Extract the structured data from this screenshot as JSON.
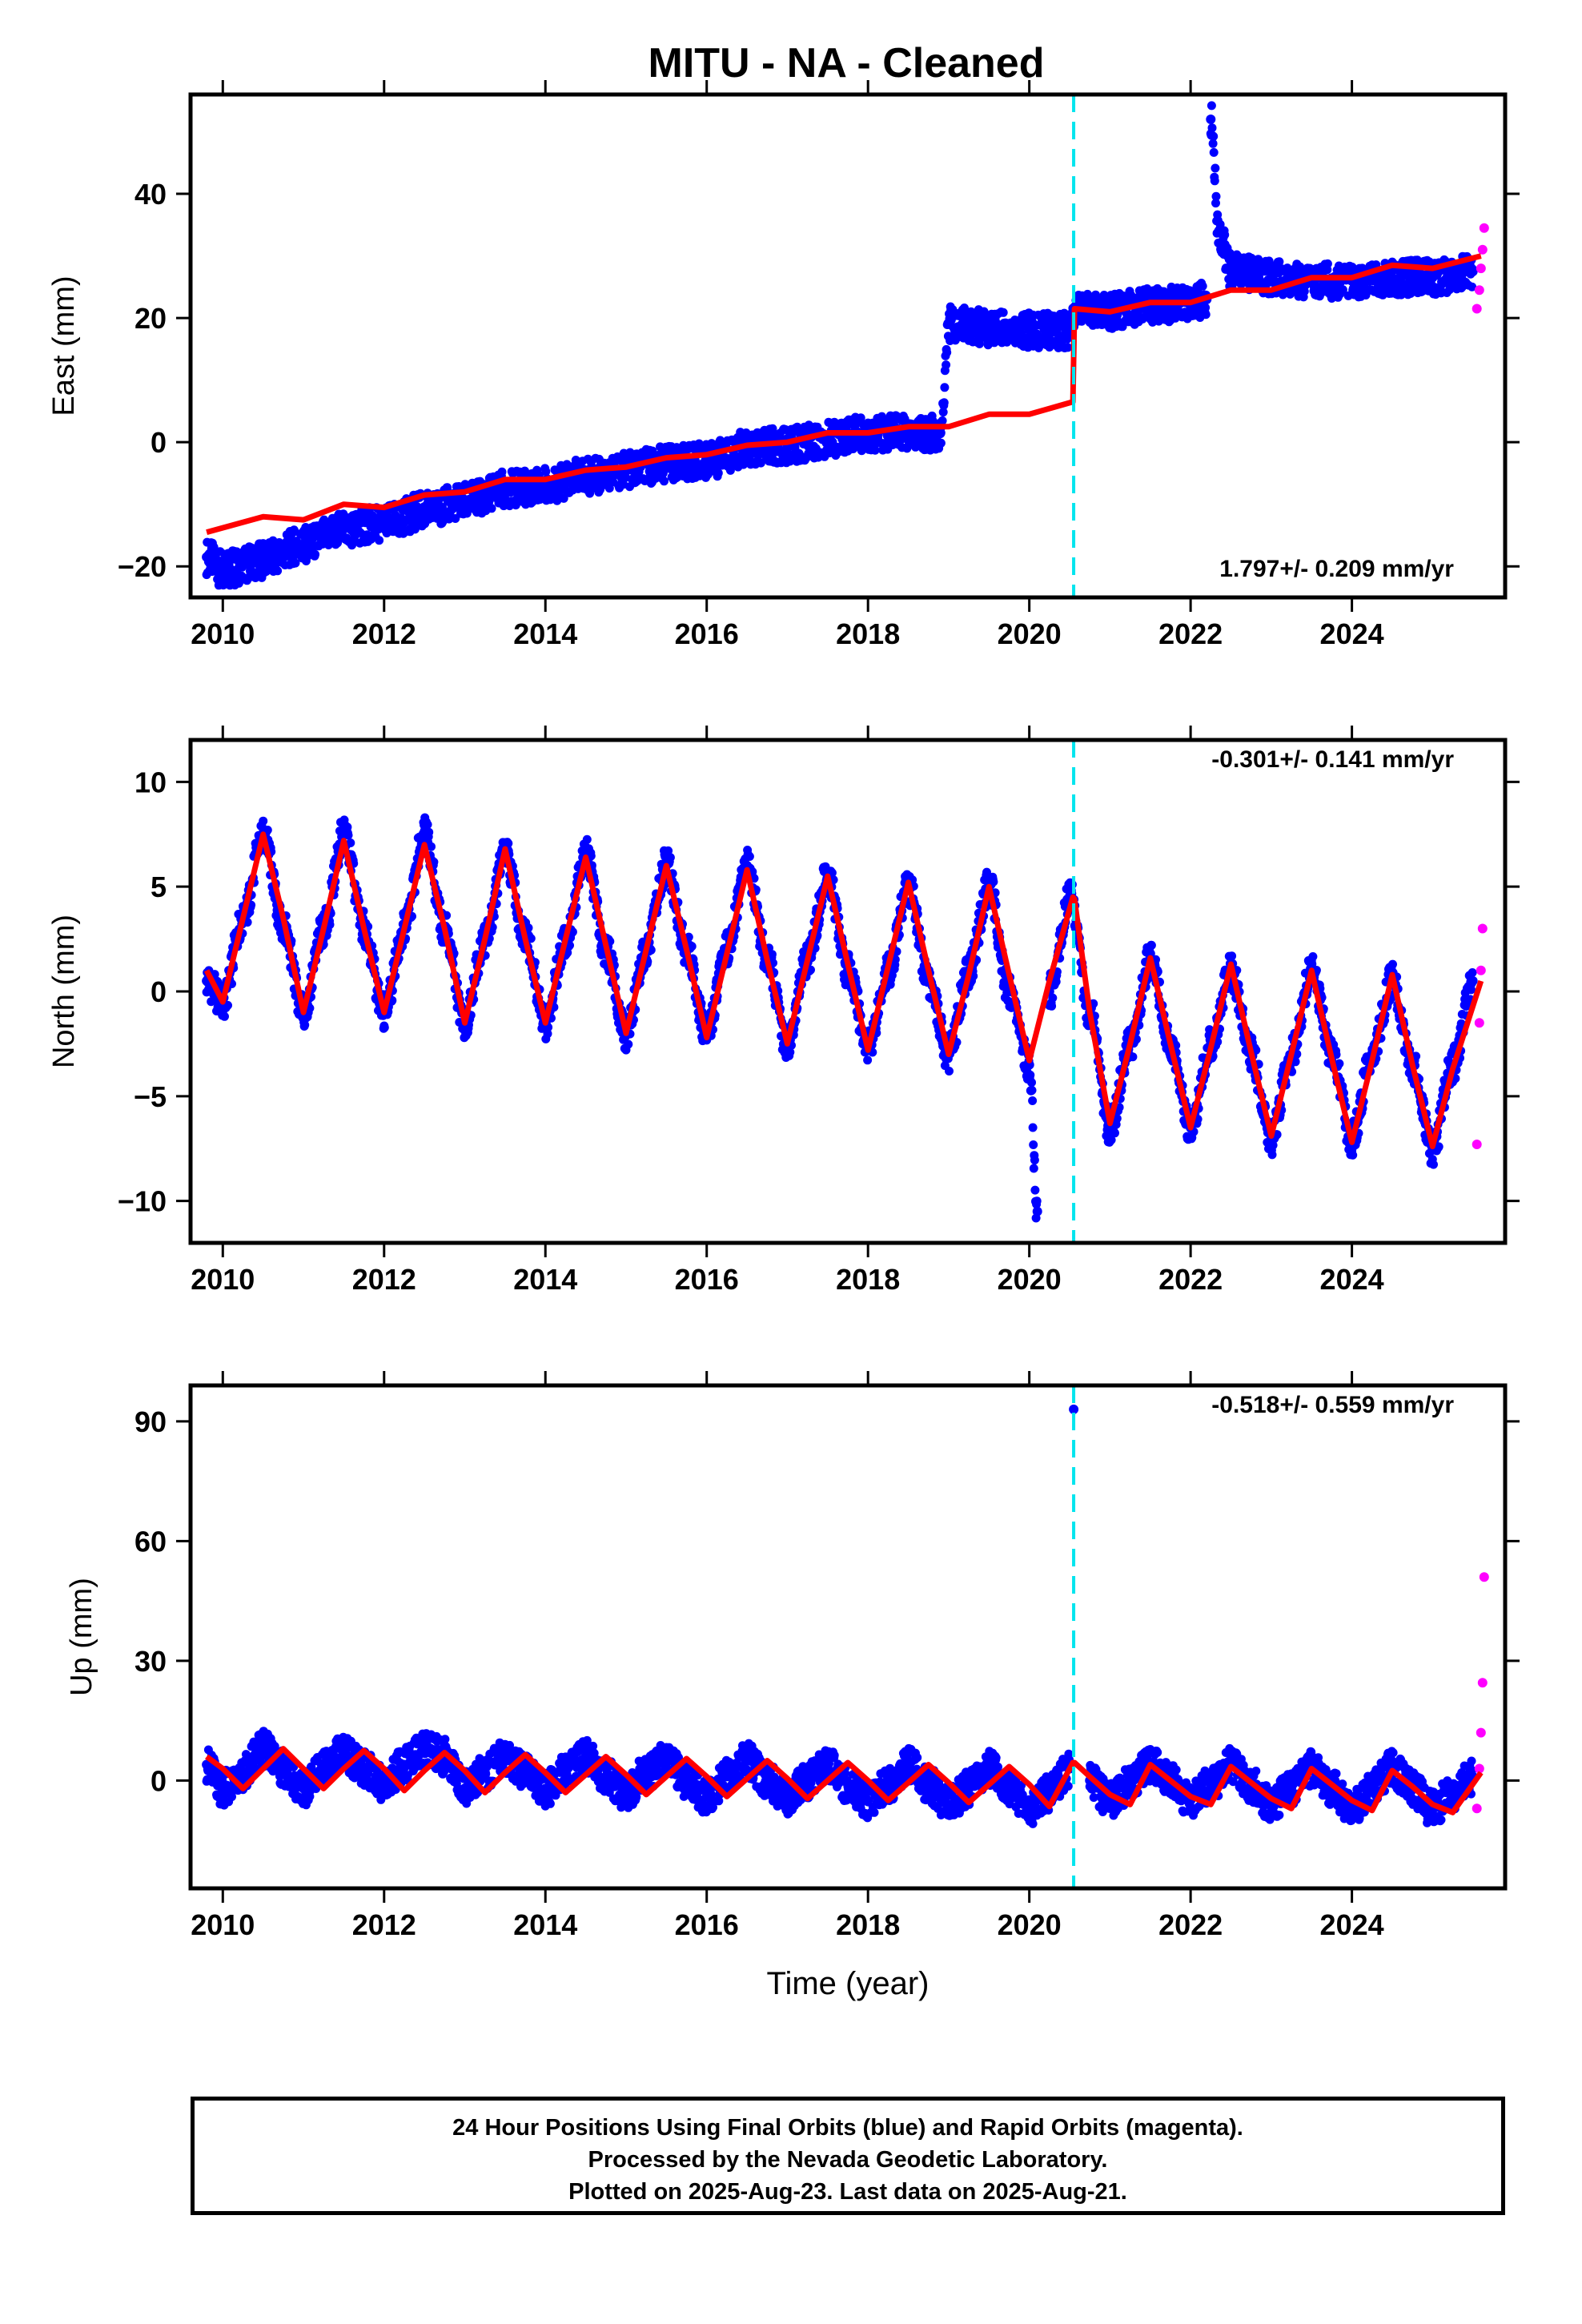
{
  "title": "MITU  - NA - Cleaned",
  "xlabel": "Time (year)",
  "footer": {
    "line1": "24 Hour Positions Using Final Orbits (blue) and Rapid Orbits (magenta).",
    "line2": "Processed by the Nevada Geodetic Laboratory.",
    "line3": "Plotted on 2025-Aug-23. Last data on 2025-Aug-21."
  },
  "colors": {
    "final_orbits": "#0000ff",
    "rapid_orbits": "#ff00ff",
    "model": "#ff0000",
    "equipment_change": "#00e5ee"
  },
  "chart_data": [
    {
      "type": "scatter",
      "component": "east",
      "ylabel": "East (mm)",
      "rate_text": "1.797+/- 0.209 mm/yr",
      "xlim": [
        2009.6,
        2025.9
      ],
      "ylim": [
        -25,
        56
      ],
      "xticks": [
        2010,
        2012,
        2014,
        2016,
        2018,
        2020,
        2022,
        2024
      ],
      "yticks": [
        -20,
        0,
        20,
        40
      ],
      "vline": 2020.55,
      "series": [
        {
          "name": "Final Orbits",
          "color": "#0000ff",
          "x": [
            2009.8,
            2010.0,
            2010.5,
            2011.0,
            2011.5,
            2012.0,
            2012.5,
            2013.0,
            2013.5,
            2014.0,
            2014.5,
            2015.0,
            2015.5,
            2016.0,
            2016.5,
            2017.0,
            2017.5,
            2018.0,
            2018.5,
            2018.9,
            2019.0,
            2019.5,
            2020.0,
            2020.5,
            2020.6,
            2021.0,
            2021.5,
            2022.0,
            2022.2,
            2022.25,
            2022.35,
            2022.5,
            2023.0,
            2023.5,
            2024.0,
            2024.5,
            2025.0,
            2025.5
          ],
          "y": [
            -18.5,
            -20.5,
            -19.0,
            -16.5,
            -14.0,
            -13.0,
            -11.0,
            -9.5,
            -7.5,
            -7.0,
            -5.5,
            -4.5,
            -3.5,
            -3.0,
            -1.0,
            -0.5,
            0.5,
            1.5,
            1.5,
            1.5,
            19.0,
            18.5,
            18.0,
            18.0,
            21.5,
            21.0,
            22.0,
            22.5,
            23.0,
            52.0,
            34.0,
            27.5,
            26.5,
            26.0,
            26.0,
            26.5,
            26.5,
            27.5
          ]
        },
        {
          "name": "Rapid Orbits",
          "color": "#ff00ff",
          "x": [
            2025.55,
            2025.58,
            2025.6,
            2025.62,
            2025.64
          ],
          "y": [
            21.5,
            24.5,
            28.0,
            31.0,
            34.5
          ]
        },
        {
          "name": "Model",
          "color": "#ff0000",
          "x": [
            2009.8,
            2010.5,
            2011.0,
            2011.5,
            2012.0,
            2012.5,
            2013.0,
            2013.5,
            2014.0,
            2014.5,
            2015.0,
            2015.5,
            2016.0,
            2016.5,
            2017.0,
            2017.5,
            2018.0,
            2018.5,
            2019.0,
            2019.5,
            2020.0,
            2020.54,
            2020.56,
            2021.0,
            2021.5,
            2022.0,
            2022.5,
            2023.0,
            2023.5,
            2024.0,
            2024.5,
            2025.0,
            2025.6
          ],
          "y": [
            -14.5,
            -12.0,
            -12.5,
            -10.0,
            -10.5,
            -8.5,
            -8.0,
            -6.0,
            -6.0,
            -4.5,
            -4.0,
            -2.5,
            -2.0,
            -0.5,
            0.0,
            1.5,
            1.5,
            2.5,
            2.5,
            4.5,
            4.5,
            6.5,
            21.5,
            21.0,
            22.5,
            22.5,
            24.5,
            24.5,
            26.5,
            26.5,
            28.5,
            28.0,
            30.0
          ]
        }
      ]
    },
    {
      "type": "scatter",
      "component": "north",
      "ylabel": "North (mm)",
      "rate_text": "-0.301+/- 0.141 mm/yr",
      "xlim": [
        2009.6,
        2025.9
      ],
      "ylim": [
        -12,
        12
      ],
      "xticks": [
        2010,
        2012,
        2014,
        2016,
        2018,
        2020,
        2022,
        2024
      ],
      "yticks": [
        -10,
        -5,
        0,
        5,
        10
      ],
      "vline": 2020.55,
      "series": [
        {
          "name": "Final Orbits",
          "color": "#0000ff",
          "x": [
            2009.8,
            2010.0,
            2010.25,
            2010.5,
            2010.75,
            2011.0,
            2011.25,
            2011.5,
            2011.75,
            2012.0,
            2012.25,
            2012.5,
            2012.75,
            2013.0,
            2013.25,
            2013.5,
            2013.75,
            2014.0,
            2014.25,
            2014.5,
            2014.75,
            2015.0,
            2015.25,
            2015.5,
            2015.75,
            2016.0,
            2016.25,
            2016.5,
            2016.75,
            2017.0,
            2017.25,
            2017.5,
            2017.75,
            2018.0,
            2018.25,
            2018.5,
            2018.75,
            2019.0,
            2019.25,
            2019.5,
            2019.75,
            2020.0,
            2020.1,
            2020.25,
            2020.5,
            2020.75,
            2021.0,
            2021.25,
            2021.5,
            2021.75,
            2022.0,
            2022.25,
            2022.5,
            2022.75,
            2023.0,
            2023.25,
            2023.5,
            2023.75,
            2024.0,
            2024.25,
            2024.5,
            2024.75,
            2025.0,
            2025.25,
            2025.5
          ],
          "y": [
            0.5,
            -0.5,
            3.5,
            7.5,
            3.0,
            -1.0,
            3.0,
            7.5,
            3.0,
            -1.0,
            3.0,
            7.5,
            3.0,
            -1.5,
            2.5,
            6.5,
            2.5,
            -1.5,
            2.5,
            6.5,
            2.0,
            -2.0,
            2.0,
            6.0,
            2.0,
            -2.0,
            2.0,
            6.0,
            1.5,
            -2.5,
            1.5,
            5.5,
            1.0,
            -2.5,
            1.0,
            5.0,
            0.5,
            -3.0,
            1.0,
            5.0,
            0.0,
            -3.5,
            -10.5,
            0.0,
            4.5,
            -1.0,
            -6.5,
            -2.5,
            1.5,
            -2.5,
            -6.5,
            -2.5,
            1.0,
            -3.0,
            -7.0,
            -3.0,
            1.0,
            -3.0,
            -7.0,
            -3.0,
            0.5,
            -3.5,
            -7.5,
            -3.5,
            0.5
          ]
        },
        {
          "name": "Rapid Orbits",
          "color": "#ff00ff",
          "x": [
            2025.55,
            2025.58,
            2025.6,
            2025.62
          ],
          "y": [
            -7.3,
            -1.5,
            1.0,
            3.0
          ]
        },
        {
          "name": "Model",
          "color": "#ff0000",
          "x": [
            2009.8,
            2010.0,
            2010.25,
            2010.5,
            2010.75,
            2011.0,
            2011.25,
            2011.5,
            2011.75,
            2012.0,
            2012.25,
            2012.5,
            2012.75,
            2013.0,
            2013.25,
            2013.5,
            2013.75,
            2014.0,
            2014.25,
            2014.5,
            2014.75,
            2015.0,
            2015.25,
            2015.5,
            2015.75,
            2016.0,
            2016.25,
            2016.5,
            2016.75,
            2017.0,
            2017.25,
            2017.5,
            2017.75,
            2018.0,
            2018.25,
            2018.5,
            2018.75,
            2019.0,
            2019.25,
            2019.5,
            2019.75,
            2020.0,
            2020.25,
            2020.54,
            2020.56,
            2020.75,
            2021.0,
            2021.25,
            2021.5,
            2021.75,
            2022.0,
            2022.25,
            2022.5,
            2022.75,
            2023.0,
            2023.25,
            2023.5,
            2023.75,
            2024.0,
            2024.25,
            2024.5,
            2024.75,
            2025.0,
            2025.25,
            2025.6
          ],
          "y": [
            1.0,
            -0.5,
            3.5,
            7.5,
            3.5,
            -1.0,
            3.0,
            7.2,
            3.0,
            -1.0,
            3.0,
            7.0,
            3.0,
            -1.5,
            2.5,
            6.8,
            2.5,
            -1.5,
            2.5,
            6.4,
            2.2,
            -2.0,
            2.0,
            6.0,
            2.0,
            -2.2,
            1.8,
            5.8,
            1.5,
            -2.5,
            1.5,
            5.5,
            1.3,
            -2.8,
            1.2,
            5.2,
            1.0,
            -3.0,
            0.8,
            5.0,
            0.8,
            -3.3,
            0.5,
            4.5,
            4.4,
            -1.0,
            -6.3,
            -2.5,
            1.6,
            -2.5,
            -6.5,
            -2.7,
            1.3,
            -2.9,
            -6.9,
            -3.0,
            1.0,
            -3.2,
            -7.2,
            -3.3,
            0.8,
            -3.5,
            -7.4,
            -3.7,
            0.5
          ]
        }
      ]
    },
    {
      "type": "scatter",
      "component": "up",
      "ylabel": "Up (mm)",
      "rate_text": "-0.518+/- 0.559 mm/yr",
      "xlim": [
        2009.6,
        2025.9
      ],
      "ylim": [
        -27,
        99
      ],
      "xticks": [
        2010,
        2012,
        2014,
        2016,
        2018,
        2020,
        2022,
        2024
      ],
      "yticks": [
        0,
        30,
        60,
        90
      ],
      "vline": 2020.55,
      "series": [
        {
          "name": "Final Orbits",
          "color": "#0000ff",
          "x": [
            2009.8,
            2010.0,
            2010.25,
            2010.5,
            2010.75,
            2011.0,
            2011.25,
            2011.5,
            2011.75,
            2012.0,
            2012.25,
            2012.5,
            2012.75,
            2013.0,
            2013.25,
            2013.5,
            2013.75,
            2014.0,
            2014.25,
            2014.5,
            2014.75,
            2015.0,
            2015.25,
            2015.5,
            2015.75,
            2016.0,
            2016.25,
            2016.5,
            2016.75,
            2017.0,
            2017.25,
            2017.5,
            2017.75,
            2018.0,
            2018.25,
            2018.5,
            2018.75,
            2019.0,
            2019.25,
            2019.5,
            2019.75,
            2020.0,
            2020.25,
            2020.5,
            2020.55,
            2020.75,
            2021.0,
            2021.25,
            2021.5,
            2021.75,
            2022.0,
            2022.25,
            2022.5,
            2022.75,
            2023.0,
            2023.25,
            2023.5,
            2023.75,
            2024.0,
            2024.25,
            2024.5,
            2024.75,
            2025.0,
            2025.25,
            2025.5
          ],
          "y": [
            4.0,
            -2.0,
            2.0,
            8.0,
            3.0,
            -2.0,
            3.0,
            7.0,
            3.0,
            -1.0,
            4.0,
            8.0,
            6.0,
            -2.0,
            2.0,
            6.0,
            2.0,
            -2.0,
            2.0,
            6.0,
            1.0,
            -3.0,
            2.0,
            5.0,
            0.0,
            -4.0,
            1.0,
            5.0,
            0.0,
            -4.0,
            0.0,
            4.0,
            -1.0,
            -5.0,
            -1.0,
            4.0,
            -1.0,
            -6.0,
            -2.0,
            3.0,
            -2.0,
            -7.0,
            -3.0,
            3.0,
            93.0,
            0.0,
            -5.0,
            -1.0,
            4.0,
            0.0,
            -5.0,
            -1.0,
            4.0,
            -1.0,
            -6.0,
            -2.0,
            3.0,
            -2.0,
            -7.0,
            -2.0,
            3.0,
            -2.0,
            -7.0,
            -3.0,
            1.0
          ]
        },
        {
          "name": "Rapid Orbits",
          "color": "#ff00ff",
          "x": [
            2025.55,
            2025.58,
            2025.6,
            2025.62,
            2025.64
          ],
          "y": [
            -7.0,
            3.0,
            12.0,
            24.5,
            51.0
          ]
        },
        {
          "name": "Model",
          "color": "#ff0000",
          "x": [
            2009.8,
            2010.0,
            2010.25,
            2010.5,
            2010.75,
            2011.0,
            2011.25,
            2011.5,
            2011.75,
            2012.0,
            2012.25,
            2012.5,
            2012.75,
            2013.0,
            2013.25,
            2013.5,
            2013.75,
            2014.0,
            2014.25,
            2014.5,
            2014.75,
            2015.0,
            2015.25,
            2015.5,
            2015.75,
            2016.0,
            2016.25,
            2016.5,
            2016.75,
            2017.0,
            2017.25,
            2017.5,
            2017.75,
            2018.0,
            2018.25,
            2018.5,
            2018.75,
            2019.0,
            2019.25,
            2019.5,
            2019.75,
            2020.0,
            2020.25,
            2020.54,
            2020.56,
            2020.75,
            2021.0,
            2021.25,
            2021.5,
            2021.75,
            2022.0,
            2022.25,
            2022.5,
            2022.75,
            2023.0,
            2023.25,
            2023.5,
            2023.75,
            2024.0,
            2024.25,
            2024.5,
            2024.75,
            2025.0,
            2025.25,
            2025.6
          ],
          "y": [
            6.0,
            3.0,
            -2.0,
            3.0,
            8.0,
            3.0,
            -2.0,
            3.0,
            7.5,
            3.0,
            -2.5,
            2.5,
            7.0,
            2.5,
            -3.0,
            2.0,
            6.5,
            2.0,
            -3.0,
            1.5,
            6.0,
            1.5,
            -3.5,
            1.0,
            5.5,
            1.0,
            -4.0,
            0.5,
            5.0,
            0.5,
            -4.5,
            0.0,
            4.5,
            0.0,
            -5.0,
            -0.5,
            4.0,
            -0.5,
            -5.5,
            -1.0,
            3.5,
            -1.0,
            -6.5,
            4.5,
            4.5,
            1.0,
            -3.5,
            -6.0,
            4.0,
            0.0,
            -4.0,
            -6.0,
            3.5,
            -0.5,
            -4.5,
            -7.0,
            3.0,
            -1.0,
            -5.0,
            -7.5,
            2.5,
            -1.5,
            -6.0,
            -8.0,
            2.0
          ]
        }
      ]
    }
  ]
}
